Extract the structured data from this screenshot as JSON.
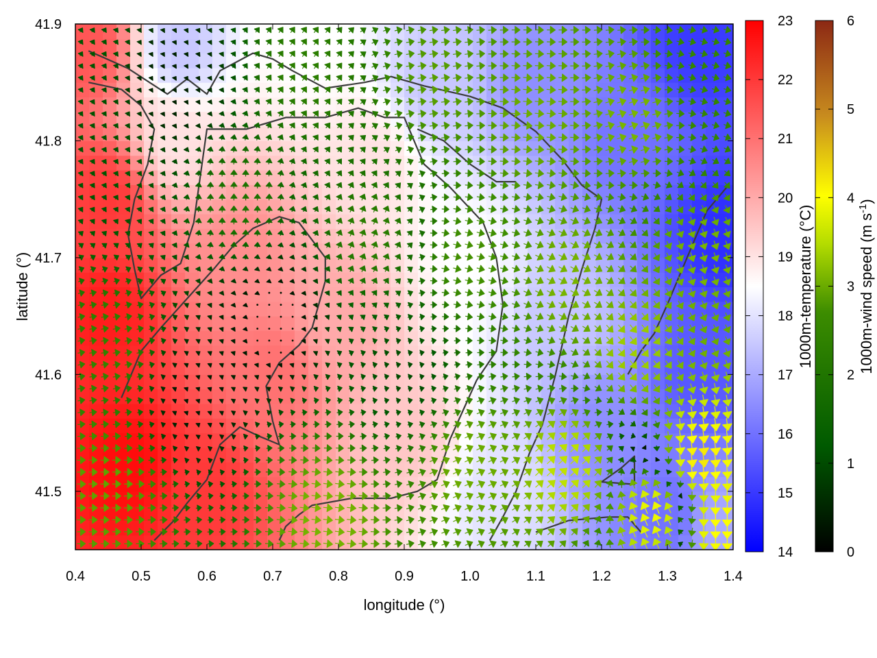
{
  "chart_data": {
    "type": "heatmap",
    "title": "",
    "xlabel": "longitude (°)",
    "ylabel": "latitude (°)",
    "xlim": [
      0.4,
      1.4
    ],
    "ylim": [
      41.45,
      41.9
    ],
    "xticks": [
      0.4,
      0.5,
      0.6,
      0.7,
      0.8,
      0.9,
      1.0,
      1.1,
      1.2,
      1.3,
      1.4
    ],
    "xtick_labels": [
      "0.4",
      "0.5",
      "0.6",
      "0.7",
      "0.8",
      "0.9",
      "1.0",
      "1.1",
      "1.2",
      "1.3",
      "1.4"
    ],
    "yticks": [
      41.5,
      41.6,
      41.7,
      41.8,
      41.9
    ],
    "ytick_labels": [
      "41.5",
      "41.6",
      "41.7",
      "41.8",
      "41.9"
    ],
    "temperature_colorbar": {
      "label": "1000m-temperature (°C)",
      "range": [
        14,
        23
      ],
      "ticks": [
        14,
        15,
        16,
        17,
        18,
        19,
        20,
        21,
        22,
        23
      ],
      "tick_labels": [
        "14",
        "15",
        "16",
        "17",
        "18",
        "19",
        "20",
        "21",
        "22",
        "23"
      ],
      "colors": [
        "#0000ff",
        "#ffffff",
        "#ff0000"
      ]
    },
    "windspeed_colorbar": {
      "label_main": "1000m-wind speed (m s",
      "label_sup": "-1",
      "label_end": ")",
      "range": [
        0,
        6
      ],
      "ticks": [
        0,
        1,
        2,
        3,
        4,
        5,
        6
      ],
      "tick_labels": [
        "0",
        "1",
        "2",
        "3",
        "4",
        "5",
        "6"
      ],
      "colors": [
        "#000000",
        "#005a00",
        "#3c8c00",
        "#b4dc00",
        "#ffff00",
        "#c88c1e",
        "#8c2814"
      ]
    },
    "temperature_field_anchors": [
      {
        "lon": 0.42,
        "lat": 41.88,
        "t": 21.5
      },
      {
        "lon": 0.45,
        "lat": 41.75,
        "t": 22.0
      },
      {
        "lon": 0.45,
        "lat": 41.65,
        "t": 22.5
      },
      {
        "lon": 0.48,
        "lat": 41.52,
        "t": 22.8
      },
      {
        "lon": 0.6,
        "lat": 41.5,
        "t": 22.0
      },
      {
        "lon": 0.55,
        "lat": 41.8,
        "t": 19.0
      },
      {
        "lon": 0.56,
        "lat": 41.88,
        "t": 17.5
      },
      {
        "lon": 0.65,
        "lat": 41.7,
        "t": 20.5
      },
      {
        "lon": 0.7,
        "lat": 41.6,
        "t": 21.0
      },
      {
        "lon": 0.75,
        "lat": 41.88,
        "t": 18.5
      },
      {
        "lon": 0.8,
        "lat": 41.65,
        "t": 20.0
      },
      {
        "lon": 0.85,
        "lat": 41.78,
        "t": 19.0
      },
      {
        "lon": 0.9,
        "lat": 41.55,
        "t": 19.5
      },
      {
        "lon": 0.95,
        "lat": 41.85,
        "t": 17.5
      },
      {
        "lon": 1.0,
        "lat": 41.7,
        "t": 18.5
      },
      {
        "lon": 1.05,
        "lat": 41.5,
        "t": 18.0
      },
      {
        "lon": 1.1,
        "lat": 41.85,
        "t": 16.5
      },
      {
        "lon": 1.15,
        "lat": 41.65,
        "t": 17.5
      },
      {
        "lon": 1.2,
        "lat": 41.55,
        "t": 16.5
      },
      {
        "lon": 1.25,
        "lat": 41.8,
        "t": 16.0
      },
      {
        "lon": 1.3,
        "lat": 41.48,
        "t": 16.0
      },
      {
        "lon": 1.35,
        "lat": 41.88,
        "t": 15.0
      },
      {
        "lon": 1.38,
        "lat": 41.72,
        "t": 14.8
      },
      {
        "lon": 1.35,
        "lat": 41.6,
        "t": 15.5
      },
      {
        "lon": 1.38,
        "lat": 41.47,
        "t": 17.0
      }
    ],
    "wind_field_anchors": [
      {
        "lon": 0.42,
        "lat": 41.88,
        "u": 0.5,
        "v": 0.8
      },
      {
        "lon": 0.45,
        "lat": 41.78,
        "u": 0.5,
        "v": 0.8
      },
      {
        "lon": 0.45,
        "lat": 41.62,
        "u": 1.8,
        "v": 0.3
      },
      {
        "lon": 0.45,
        "lat": 41.5,
        "u": 2.3,
        "v": 0.0
      },
      {
        "lon": 0.55,
        "lat": 41.85,
        "u": 0.2,
        "v": 0.3
      },
      {
        "lon": 0.58,
        "lat": 41.58,
        "u": 0.2,
        "v": 0.2
      },
      {
        "lon": 0.65,
        "lat": 41.75,
        "u": 0.0,
        "v": 1.5
      },
      {
        "lon": 0.7,
        "lat": 41.65,
        "u": 0.0,
        "v": 0.2
      },
      {
        "lon": 0.75,
        "lat": 41.86,
        "u": 1.0,
        "v": 1.4
      },
      {
        "lon": 0.78,
        "lat": 41.48,
        "u": 2.5,
        "v": -0.3
      },
      {
        "lon": 0.85,
        "lat": 41.72,
        "u": 0.6,
        "v": 1.6
      },
      {
        "lon": 0.9,
        "lat": 41.6,
        "u": 0.8,
        "v": 0.2
      },
      {
        "lon": 0.95,
        "lat": 41.85,
        "u": 2.2,
        "v": 0.3
      },
      {
        "lon": 1.0,
        "lat": 41.7,
        "u": 2.0,
        "v": -0.5
      },
      {
        "lon": 1.0,
        "lat": 41.52,
        "u": 2.2,
        "v": 1.0
      },
      {
        "lon": 1.1,
        "lat": 41.82,
        "u": 2.4,
        "v": -0.2
      },
      {
        "lon": 1.15,
        "lat": 41.68,
        "u": 2.2,
        "v": -1.2
      },
      {
        "lon": 1.15,
        "lat": 41.52,
        "u": 2.3,
        "v": 2.2
      },
      {
        "lon": 1.25,
        "lat": 41.82,
        "u": 2.4,
        "v": 0.8
      },
      {
        "lon": 1.25,
        "lat": 41.62,
        "u": 1.8,
        "v": -2.2
      },
      {
        "lon": 1.28,
        "lat": 41.48,
        "u": -1.5,
        "v": 3.5
      },
      {
        "lon": 1.35,
        "lat": 41.86,
        "u": 1.8,
        "v": -0.5
      },
      {
        "lon": 1.35,
        "lat": 41.7,
        "u": 0.8,
        "v": -2.4
      },
      {
        "lon": 1.35,
        "lat": 41.53,
        "u": 0.5,
        "v": -4.2
      },
      {
        "lon": 1.38,
        "lat": 41.47,
        "u": 0.0,
        "v": -4.0
      }
    ],
    "terrain_contours": [
      [
        [
          0.42,
          41.877
        ],
        [
          0.48,
          41.862
        ],
        [
          0.54,
          41.84
        ],
        [
          0.57,
          41.853
        ],
        [
          0.6,
          41.84
        ],
        [
          0.62,
          41.86
        ],
        [
          0.67,
          41.875
        ],
        [
          0.7,
          41.87
        ],
        [
          0.73,
          41.86
        ],
        [
          0.78,
          41.845
        ],
        [
          0.84,
          41.85
        ],
        [
          0.88,
          41.855
        ],
        [
          0.93,
          41.847
        ],
        [
          1.0,
          41.838
        ],
        [
          1.05,
          41.828
        ],
        [
          1.1,
          41.808
        ],
        [
          1.14,
          41.784
        ],
        [
          1.17,
          41.762
        ],
        [
          1.2,
          41.75
        ],
        [
          1.19,
          41.725
        ],
        [
          1.17,
          41.69
        ],
        [
          1.15,
          41.65
        ],
        [
          1.13,
          41.6
        ],
        [
          1.11,
          41.557
        ],
        [
          1.09,
          41.532
        ],
        [
          1.07,
          41.5
        ],
        [
          1.05,
          41.478
        ],
        [
          1.03,
          41.458
        ]
      ],
      [
        [
          0.42,
          41.85
        ],
        [
          0.47,
          41.844
        ],
        [
          0.5,
          41.83
        ],
        [
          0.52,
          41.81
        ],
        [
          0.51,
          41.78
        ],
        [
          0.49,
          41.75
        ],
        [
          0.48,
          41.72
        ],
        [
          0.49,
          41.69
        ],
        [
          0.5,
          41.665
        ],
        [
          0.53,
          41.685
        ],
        [
          0.56,
          41.695
        ],
        [
          0.58,
          41.73
        ],
        [
          0.59,
          41.77
        ],
        [
          0.6,
          41.81
        ],
        [
          0.66,
          41.81
        ],
        [
          0.72,
          41.82
        ],
        [
          0.78,
          41.82
        ],
        [
          0.83,
          41.828
        ],
        [
          0.87,
          41.82
        ],
        [
          0.9,
          41.82
        ],
        [
          0.93,
          41.78
        ],
        [
          0.97,
          41.76
        ],
        [
          1.02,
          41.73
        ],
        [
          1.04,
          41.7
        ],
        [
          1.05,
          41.66
        ],
        [
          1.04,
          41.62
        ],
        [
          1.01,
          41.595
        ],
        [
          0.99,
          41.57
        ],
        [
          0.97,
          41.545
        ],
        [
          0.95,
          41.51
        ],
        [
          0.92,
          41.5
        ],
        [
          0.88,
          41.494
        ],
        [
          0.82,
          41.494
        ],
        [
          0.76,
          41.488
        ],
        [
          0.74,
          41.48
        ],
        [
          0.72,
          41.47
        ],
        [
          0.71,
          41.458
        ]
      ],
      [
        [
          0.47,
          41.58
        ],
        [
          0.5,
          41.62
        ],
        [
          0.53,
          41.64
        ],
        [
          0.57,
          41.665
        ],
        [
          0.61,
          41.69
        ],
        [
          0.64,
          41.71
        ],
        [
          0.67,
          41.725
        ],
        [
          0.71,
          41.735
        ],
        [
          0.74,
          41.73
        ],
        [
          0.76,
          41.715
        ],
        [
          0.78,
          41.7
        ],
        [
          0.78,
          41.68
        ],
        [
          0.77,
          41.66
        ],
        [
          0.76,
          41.64
        ],
        [
          0.74,
          41.625
        ],
        [
          0.71,
          41.61
        ],
        [
          0.69,
          41.59
        ],
        [
          0.7,
          41.56
        ],
        [
          0.71,
          41.54
        ],
        [
          0.68,
          41.547
        ],
        [
          0.65,
          41.555
        ],
        [
          0.62,
          41.54
        ],
        [
          0.6,
          41.51
        ],
        [
          0.57,
          41.49
        ],
        [
          0.55,
          41.475
        ],
        [
          0.52,
          41.458
        ]
      ],
      [
        [
          0.92,
          41.81
        ],
        [
          0.96,
          41.8
        ],
        [
          1.0,
          41.78
        ],
        [
          1.04,
          41.765
        ],
        [
          1.07,
          41.765
        ]
      ],
      [
        [
          1.1,
          41.465
        ],
        [
          1.15,
          41.475
        ],
        [
          1.21,
          41.478
        ],
        [
          1.24,
          41.478
        ],
        [
          1.26,
          41.465
        ]
      ],
      [
        [
          1.2,
          41.508
        ],
        [
          1.23,
          41.52
        ],
        [
          1.25,
          41.53
        ],
        [
          1.25,
          41.506
        ],
        [
          1.2,
          41.508
        ]
      ],
      [
        [
          1.39,
          41.76
        ],
        [
          1.36,
          41.74
        ],
        [
          1.33,
          41.7
        ],
        [
          1.3,
          41.66
        ],
        [
          1.28,
          41.635
        ],
        [
          1.26,
          41.62
        ],
        [
          1.24,
          41.6
        ]
      ]
    ]
  }
}
